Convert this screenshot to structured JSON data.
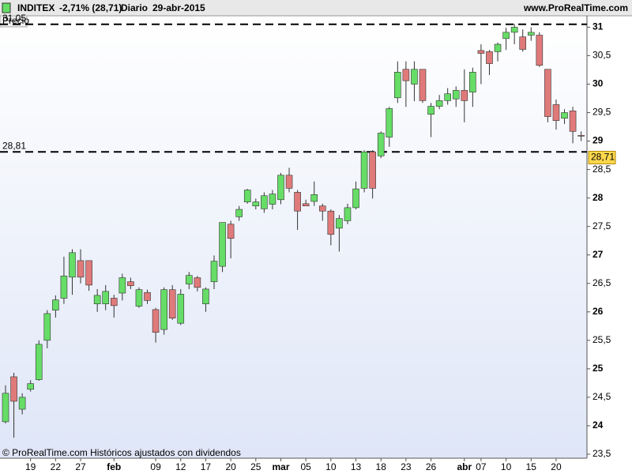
{
  "chart_data": {
    "type": "candlestick",
    "title": "INDITEX",
    "change": "-2,71% (28,71)",
    "period": "Diario",
    "date": "29-abr-2015",
    "site": "www.ProRealTime.com",
    "panel_label": "Precio",
    "footer": "© ProRealTime.com Históricos ajustados con dividendos",
    "categories": [
      null,
      null,
      null,
      "19",
      null,
      null,
      "22",
      null,
      null,
      "27",
      null,
      null,
      null,
      "feb",
      null,
      null,
      null,
      null,
      "09",
      null,
      null,
      "12",
      null,
      null,
      "17",
      null,
      null,
      "20",
      null,
      null,
      "25",
      null,
      null,
      "mar",
      null,
      null,
      "05",
      null,
      null,
      "10",
      null,
      null,
      "13",
      null,
      null,
      "18",
      null,
      null,
      "23",
      null,
      null,
      "26",
      null,
      null,
      null,
      "abr",
      null,
      "07",
      null,
      null,
      "10",
      null,
      null,
      "15",
      null,
      null,
      "20",
      null,
      null,
      null
    ],
    "open": [
      24.07,
      24.86,
      24.29,
      24.64,
      24.81,
      25.5,
      26.03,
      26.24,
      26.61,
      26.9,
      26.9,
      26.14,
      26.14,
      26.24,
      26.33,
      26.53,
      26.1,
      26.34,
      26.04,
      25.69,
      26.39,
      25.8,
      26.49,
      26.6,
      26.14,
      26.53,
      26.8,
      27.54,
      27.67,
      27.93,
      27.86,
      27.81,
      27.89,
      27.97,
      28.4,
      28.1,
      27.9,
      27.94,
      27.86,
      27.77,
      27.47,
      27.6,
      27.83,
      28.17,
      28.81,
      28.74,
      29.07,
      29.76,
      30.26,
      30.0,
      30.26,
      29.47,
      29.61,
      29.71,
      29.74,
      29.89,
      29.86,
      30.59,
      30.57,
      30.57,
      30.8,
      30.91,
      30.83,
      30.86,
      30.86,
      30.26,
      29.64,
      29.4,
      29.53,
      29.1
    ],
    "high": [
      24.71,
      24.93,
      24.57,
      24.8,
      25.5,
      26.03,
      26.29,
      26.97,
      27.1,
      27.1,
      26.9,
      26.4,
      26.47,
      26.3,
      26.67,
      26.6,
      26.43,
      26.39,
      26.07,
      26.43,
      26.47,
      26.4,
      26.7,
      26.63,
      26.43,
      26.99,
      27.57,
      27.6,
      27.86,
      28.16,
      27.99,
      28.1,
      28.14,
      28.44,
      28.53,
      28.14,
      27.97,
      28.29,
      27.9,
      27.8,
      27.7,
      27.9,
      28.29,
      28.84,
      28.84,
      29.17,
      29.6,
      30.4,
      30.4,
      30.4,
      30.26,
      29.67,
      29.81,
      29.93,
      29.96,
      30.26,
      30.29,
      30.7,
      30.6,
      30.73,
      30.99,
      31.06,
      30.96,
      31.0,
      30.91,
      30.26,
      29.73,
      29.56,
      29.6,
      29.17
    ],
    "low": [
      24.04,
      23.79,
      24.2,
      24.6,
      24.79,
      25.36,
      25.9,
      26.14,
      26.3,
      26.5,
      26.37,
      26.0,
      26.03,
      25.9,
      26.2,
      26.4,
      26.07,
      26.14,
      25.46,
      25.6,
      25.86,
      25.77,
      26.4,
      26.36,
      26.0,
      26.4,
      26.7,
      26.94,
      27.6,
      27.9,
      27.8,
      27.74,
      27.8,
      27.89,
      28.1,
      27.44,
      27.86,
      27.86,
      27.6,
      27.17,
      27.06,
      27.54,
      27.8,
      28.1,
      27.99,
      28.7,
      28.9,
      29.67,
      29.6,
      29.7,
      29.67,
      29.07,
      29.56,
      29.64,
      29.6,
      29.33,
      29.6,
      30.0,
      30.16,
      30.4,
      30.6,
      30.7,
      30.57,
      30.76,
      30.3,
      29.33,
      29.2,
      29.3,
      28.96,
      29.0
    ],
    "close": [
      24.57,
      24.43,
      24.5,
      24.74,
      25.43,
      25.97,
      26.21,
      26.63,
      27.04,
      26.61,
      26.47,
      26.29,
      26.36,
      26.11,
      26.6,
      26.46,
      26.39,
      26.2,
      25.64,
      26.39,
      25.89,
      26.31,
      26.64,
      26.43,
      26.4,
      26.89,
      27.57,
      27.29,
      27.8,
      28.14,
      27.93,
      28.04,
      28.07,
      28.4,
      28.17,
      27.77,
      27.86,
      28.06,
      27.77,
      27.36,
      27.64,
      27.83,
      28.16,
      28.81,
      28.17,
      29.14,
      29.57,
      30.21,
      30.06,
      30.26,
      29.71,
      29.61,
      29.71,
      29.83,
      29.89,
      29.71,
      30.21,
      30.54,
      30.36,
      30.7,
      30.91,
      31.0,
      30.61,
      30.91,
      30.33,
      29.43,
      29.36,
      29.5,
      29.17,
      29.09
    ],
    "up_color": "#66dd66",
    "down_color": "#e07a7a",
    "ylim": [
      23.43,
      31.2
    ],
    "yticks": [
      {
        "value": 23.5,
        "label": "23,5"
      },
      24,
      {
        "value": 24.5,
        "label": "24,5"
      },
      25,
      {
        "value": 25.5,
        "label": "25,5"
      },
      26,
      {
        "value": 26.5,
        "label": "26,5"
      },
      27,
      {
        "value": 27.5,
        "label": "27,5"
      },
      28,
      {
        "value": 28.5,
        "label": "28,5"
      },
      29,
      {
        "value": 29.5,
        "label": "29,5"
      },
      30,
      {
        "value": 30.5,
        "label": "30,5"
      },
      31
    ],
    "reference_lines": [
      {
        "value": 31.05,
        "label": "31,05"
      },
      {
        "value": 28.81,
        "label": "28,81"
      }
    ],
    "last_price": {
      "value": 28.71,
      "label": "28,71"
    }
  }
}
